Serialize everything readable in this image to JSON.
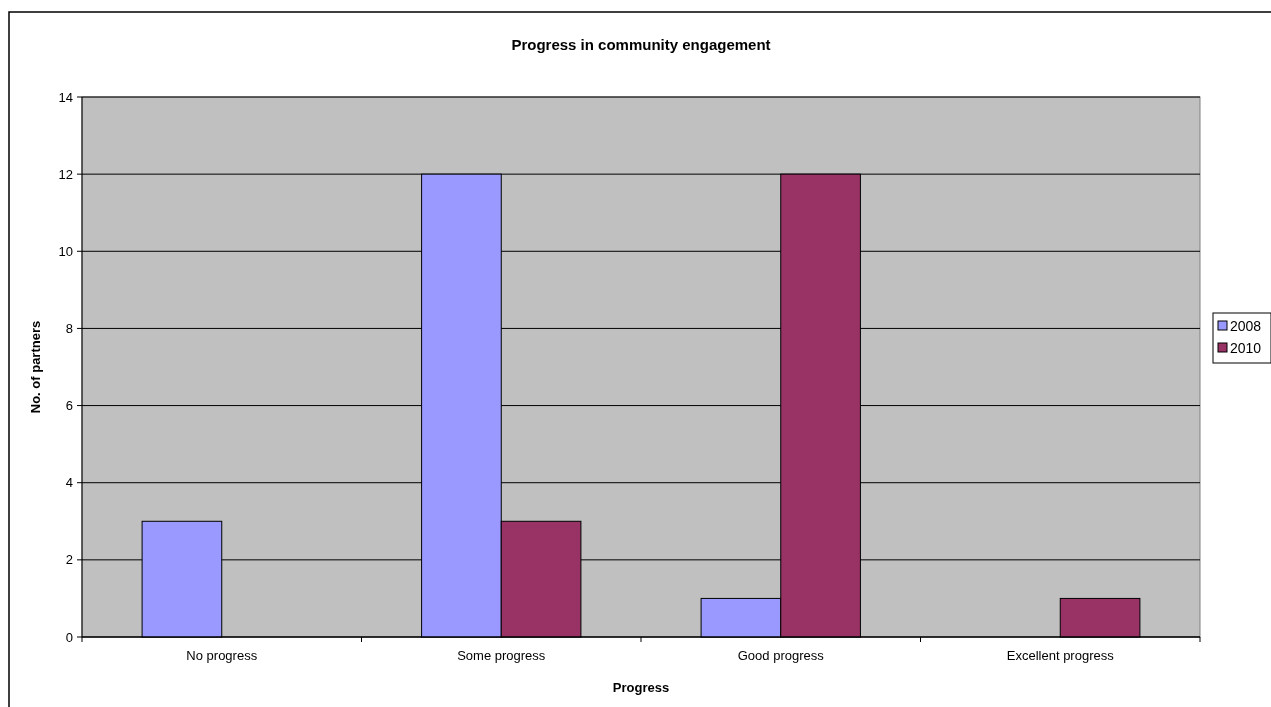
{
  "chart_data": {
    "type": "bar",
    "title": "Progress in community engagement",
    "xlabel": "Progress",
    "ylabel": "No. of partners",
    "categories": [
      "No progress",
      "Some progress",
      "Good progress",
      "Excellent progress"
    ],
    "series": [
      {
        "name": "2008",
        "color": "#9999ff",
        "values": [
          3,
          12,
          1,
          0
        ]
      },
      {
        "name": "2010",
        "color": "#993366",
        "values": [
          0,
          3,
          12,
          1
        ]
      }
    ],
    "ylim": [
      0,
      14
    ],
    "yticks": [
      0,
      2,
      4,
      6,
      8,
      10,
      12,
      14
    ],
    "grid": "y",
    "legend": "right"
  }
}
